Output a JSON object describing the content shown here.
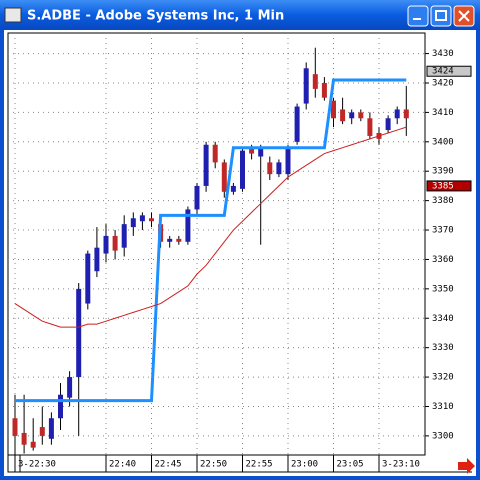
{
  "chart_data": {
    "type": "candlestick",
    "title": "S.ADBE - Adobe Systems Inc, 1 Min",
    "x": [
      "22:30",
      "22:31",
      "22:32",
      "22:33",
      "22:34",
      "22:35",
      "22:36",
      "22:37",
      "22:38",
      "22:39",
      "22:40",
      "22:41",
      "22:42",
      "22:43",
      "22:44",
      "22:45",
      "22:46",
      "22:47",
      "22:48",
      "22:49",
      "22:50",
      "22:51",
      "22:52",
      "22:53",
      "22:54",
      "22:55",
      "22:56",
      "22:57",
      "22:58",
      "22:59",
      "23:00",
      "23:01",
      "23:02",
      "23:03",
      "23:04",
      "23:05",
      "23:06",
      "23:07",
      "23:08",
      "23:09",
      "23:10",
      "23:11",
      "23:12",
      "23:13"
    ],
    "open": [
      3306,
      3301,
      3298,
      3303,
      3299,
      3306,
      3313,
      3320,
      3345,
      3356,
      3362,
      3368,
      3364,
      3371,
      3373,
      3374,
      3372,
      3366,
      3367,
      3366,
      3377,
      3385,
      3399,
      3393,
      3383,
      3384,
      3398,
      3395,
      3393,
      3389,
      3389,
      3400,
      3413,
      3423,
      3420,
      3414,
      3411,
      3408,
      3410,
      3408,
      3403,
      3404,
      3408,
      3411
    ],
    "high": [
      3314,
      3314,
      3306,
      3310,
      3308,
      3318,
      3322,
      3352,
      3363,
      3371,
      3372,
      3370,
      3375,
      3376,
      3376,
      3376,
      3374,
      3368,
      3368,
      3378,
      3386,
      3400,
      3400,
      3394,
      3386,
      3398,
      3399,
      3399,
      3395,
      3394,
      3399,
      3413,
      3427,
      3432,
      3422,
      3415,
      3415,
      3411,
      3411,
      3410,
      3405,
      3409,
      3412,
      3419
    ],
    "low": [
      3293,
      3294,
      3295,
      3297,
      3297,
      3302,
      3310,
      3300,
      3343,
      3354,
      3359,
      3360,
      3361,
      3368,
      3370,
      3371,
      3364,
      3364,
      3365,
      3365,
      3375,
      3383,
      3391,
      3381,
      3382,
      3383,
      3394,
      3365,
      3387,
      3388,
      3387,
      3399,
      3411,
      3415,
      3414,
      3405,
      3406,
      3406,
      3407,
      3401,
      3399,
      3403,
      3406,
      3402
    ],
    "close": [
      3300,
      3297,
      3296,
      3300,
      3306,
      3314,
      3320,
      3350,
      3362,
      3364,
      3368,
      3363,
      3372,
      3374,
      3375,
      3373,
      3366,
      3367,
      3366,
      3377,
      3385,
      3399,
      3393,
      3383,
      3385,
      3397,
      3396,
      3398,
      3389,
      3393,
      3398,
      3412,
      3425,
      3418,
      3415,
      3408,
      3407,
      3410,
      3408,
      3402,
      3401,
      3408,
      3411,
      3408
    ],
    "up_color": "#2020b0",
    "down_color": "#c02828",
    "lines": [
      {
        "color": "#1e8fff",
        "values": [
          3312,
          3312,
          3312,
          3312,
          3312,
          3312,
          3312,
          3312,
          3312,
          3312,
          3312,
          3312,
          3312,
          3312,
          3312,
          3312,
          3375,
          3375,
          3375,
          3375,
          3375,
          3375,
          3375,
          3375,
          3398,
          3398,
          3398,
          3398,
          3398,
          3398,
          3398,
          3398,
          3398,
          3398,
          3398,
          3421,
          3421,
          3421,
          3421,
          3421,
          3421,
          3421,
          3421,
          3421
        ]
      },
      {
        "color": "#cc2020",
        "values": [
          3345,
          3343,
          3341,
          3339,
          3338,
          3337,
          3337,
          3337,
          3338,
          3338,
          3339,
          3340,
          3341,
          3342,
          3343,
          3344,
          3345,
          3347,
          3349,
          3351,
          3355,
          3358,
          3362,
          3366,
          3370,
          3373,
          3376,
          3379,
          3382,
          3385,
          3388,
          3390,
          3392,
          3394,
          3396,
          3397,
          3398,
          3399,
          3400,
          3401,
          3402,
          3403,
          3404,
          3405
        ]
      }
    ],
    "ylim": [
      3293.5,
      3437
    ],
    "yticks": [
      3300,
      3310,
      3320,
      3330,
      3340,
      3350,
      3360,
      3370,
      3380,
      3390,
      3400,
      3410,
      3420,
      3430
    ],
    "xticks": [
      {
        "value": "22:30",
        "label": "3-22:30"
      },
      "22:40",
      "22:45",
      "22:50",
      "22:55",
      "23:00",
      "23:05",
      {
        "value": "23:10",
        "label": "3-23:10"
      }
    ],
    "grid": true,
    "price_markers": [
      {
        "value": 3424,
        "color": "#c8c8c8",
        "text_color": "#000000"
      },
      {
        "value": 3385,
        "color": "#b00000",
        "text_color": "#ffffff"
      }
    ]
  }
}
